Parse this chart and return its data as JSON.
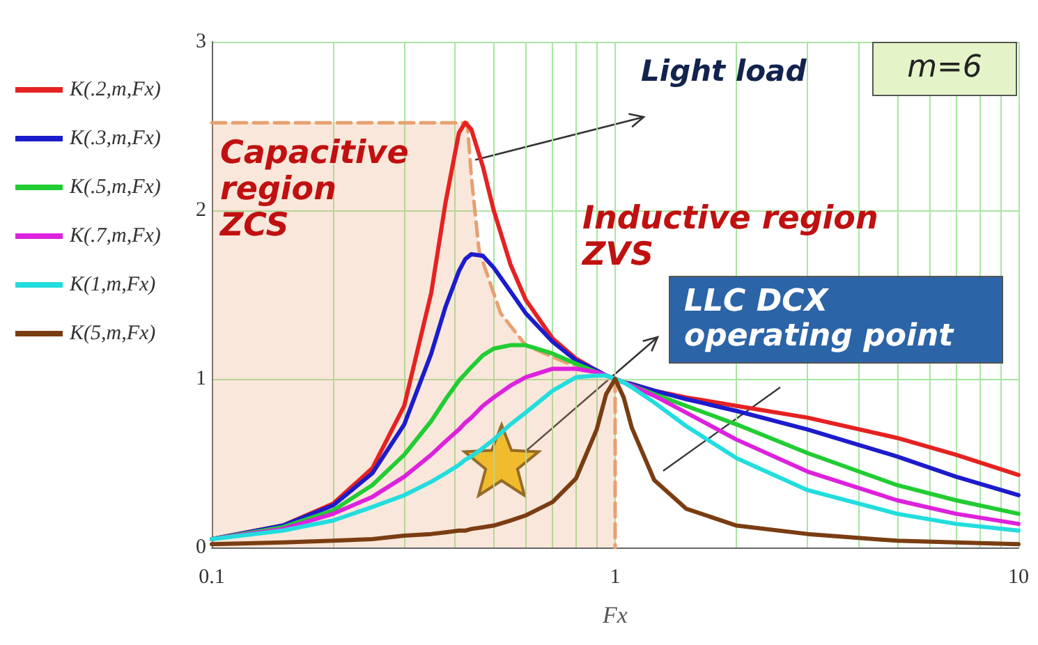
{
  "chart_data": {
    "type": "line",
    "xlabel": "Fx",
    "log": "x",
    "grid": true,
    "legend": "left",
    "marker": "none",
    "line_style": "solid",
    "xlim": [
      0.1,
      10
    ],
    "xticks": [
      0.1,
      1,
      10
    ],
    "ylim": [
      0,
      3
    ],
    "yticks": [
      0,
      1,
      2,
      3
    ],
    "x": [
      0.1,
      0.15,
      0.2,
      0.25,
      0.3,
      0.35,
      0.38,
      0.41,
      0.425,
      0.44,
      0.47,
      0.5,
      0.55,
      0.6,
      0.7,
      0.8,
      0.9,
      0.95,
      1,
      1.05,
      1.1,
      1.25,
      1.5,
      2,
      3,
      5,
      7,
      10
    ],
    "series": [
      {
        "name": "K(.2,m,Fx)",
        "color": "#e52222",
        "values": [
          0.05,
          0.13,
          0.26,
          0.47,
          0.84,
          1.51,
          2.05,
          2.46,
          2.52,
          2.48,
          2.26,
          2.0,
          1.68,
          1.47,
          1.24,
          1.12,
          1.05,
          1.02,
          1,
          0.98,
          0.97,
          0.93,
          0.89,
          0.84,
          0.77,
          0.65,
          0.55,
          0.43
        ]
      },
      {
        "name": "K(.3,m,Fx)",
        "color": "#1c1ccc",
        "values": [
          0.05,
          0.13,
          0.25,
          0.44,
          0.73,
          1.15,
          1.43,
          1.64,
          1.71,
          1.74,
          1.73,
          1.66,
          1.52,
          1.39,
          1.22,
          1.11,
          1.05,
          1.02,
          1,
          0.98,
          0.97,
          0.93,
          0.88,
          0.81,
          0.7,
          0.54,
          0.42,
          0.31
        ]
      },
      {
        "name": "K(.5,m,Fx)",
        "color": "#22cc33",
        "values": [
          0.05,
          0.12,
          0.22,
          0.37,
          0.55,
          0.75,
          0.88,
          0.99,
          1.03,
          1.07,
          1.14,
          1.18,
          1.2,
          1.2,
          1.15,
          1.09,
          1.04,
          1.02,
          1,
          0.98,
          0.96,
          0.91,
          0.84,
          0.73,
          0.56,
          0.37,
          0.28,
          0.2
        ]
      },
      {
        "name": "K(.7,m,Fx)",
        "color": "#dd22dd",
        "values": [
          0.05,
          0.11,
          0.2,
          0.3,
          0.42,
          0.55,
          0.63,
          0.7,
          0.74,
          0.77,
          0.84,
          0.89,
          0.96,
          1.01,
          1.06,
          1.06,
          1.04,
          1.02,
          1,
          0.98,
          0.96,
          0.9,
          0.8,
          0.64,
          0.45,
          0.28,
          0.2,
          0.14
        ]
      },
      {
        "name": "K(1,m,Fx)",
        "color": "#22dddd",
        "values": [
          0.05,
          0.1,
          0.16,
          0.24,
          0.31,
          0.39,
          0.44,
          0.49,
          0.52,
          0.54,
          0.59,
          0.64,
          0.73,
          0.8,
          0.93,
          1.01,
          1.02,
          1.02,
          1,
          0.98,
          0.95,
          0.86,
          0.72,
          0.53,
          0.34,
          0.2,
          0.14,
          0.1
        ]
      },
      {
        "name": "K(5,m,Fx)",
        "color": "#7a3d12",
        "values": [
          0.02,
          0.03,
          0.04,
          0.05,
          0.07,
          0.08,
          0.09,
          0.1,
          0.1,
          0.11,
          0.12,
          0.13,
          0.16,
          0.19,
          0.27,
          0.41,
          0.7,
          0.91,
          1,
          0.89,
          0.71,
          0.4,
          0.23,
          0.13,
          0.08,
          0.04,
          0.03,
          0.02
        ]
      },
      {
        "type": "area",
        "color": "#e8a070",
        "line_style": "dashed",
        "x": [
          0.1,
          0.43,
          0.44,
          0.46,
          0.52,
          0.6,
          0.75,
          0.9,
          1,
          1
        ],
        "values": [
          2.52,
          2.52,
          2.2,
          1.76,
          1.39,
          1.2,
          1.1,
          1.04,
          1,
          0
        ]
      }
    ],
    "annotations": [
      {
        "text": "Light load",
        "x": 0.45,
        "y": 2.3
      },
      "m=6",
      "Capacitive region ZCS",
      "Inductive region ZVS",
      "LLC DCX operating point"
    ]
  }
}
